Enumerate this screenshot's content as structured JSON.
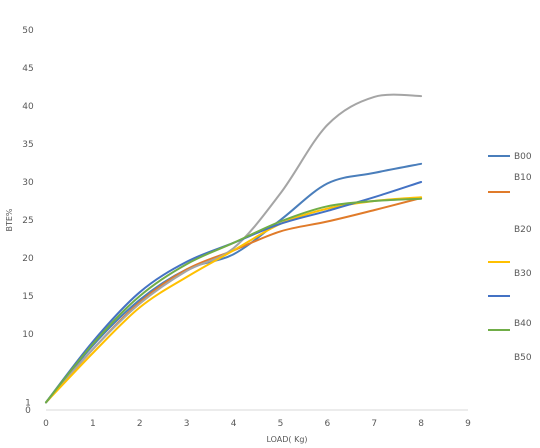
{
  "chart_data": {
    "type": "line",
    "title": "",
    "xlabel": "LOAD( Kg)",
    "ylabel": "BTE%",
    "x": [
      0,
      1,
      2,
      3,
      4,
      5,
      6,
      7,
      8
    ],
    "xticks": [
      "0",
      "1",
      "2",
      "3",
      "4",
      "5",
      "6",
      "7",
      "8",
      "9"
    ],
    "yticks": [
      "0",
      "1",
      "10",
      "15",
      "20",
      "25",
      "30",
      "35",
      "40",
      "45",
      "50"
    ],
    "xlim": [
      0,
      9
    ],
    "ylim": [
      0,
      50
    ],
    "grid": false,
    "legend_position": "right",
    "series": [
      {
        "name": "B00",
        "color": "#4a7ebb",
        "values": [
          1,
          8.5,
          14.5,
          18.5,
          20.5,
          25,
          29.8,
          31.2,
          32.4
        ]
      },
      {
        "name": "B10",
        "color": "#e07b2a",
        "values": [
          1,
          8,
          14.2,
          18.5,
          21,
          23.5,
          24.8,
          26.3,
          27.9
        ]
      },
      {
        "name": "B20",
        "color": "#a5a5a5",
        "values": [
          1,
          8,
          14,
          18.3,
          21.3,
          28.5,
          37.5,
          41.2,
          41.3
        ]
      },
      {
        "name": "B30",
        "color": "#ffc000",
        "values": [
          1,
          7.5,
          13.5,
          17.5,
          21,
          24.5,
          26.5,
          27.5,
          28
        ]
      },
      {
        "name": "B40",
        "color": "#4472c4",
        "values": [
          1,
          9,
          15.5,
          19.5,
          22,
          24.5,
          26.2,
          28,
          30
        ]
      },
      {
        "name": "B50",
        "color": "#70ad47",
        "values": [
          1,
          8.7,
          15,
          19.2,
          22,
          24.8,
          26.8,
          27.5,
          27.8
        ]
      }
    ]
  }
}
